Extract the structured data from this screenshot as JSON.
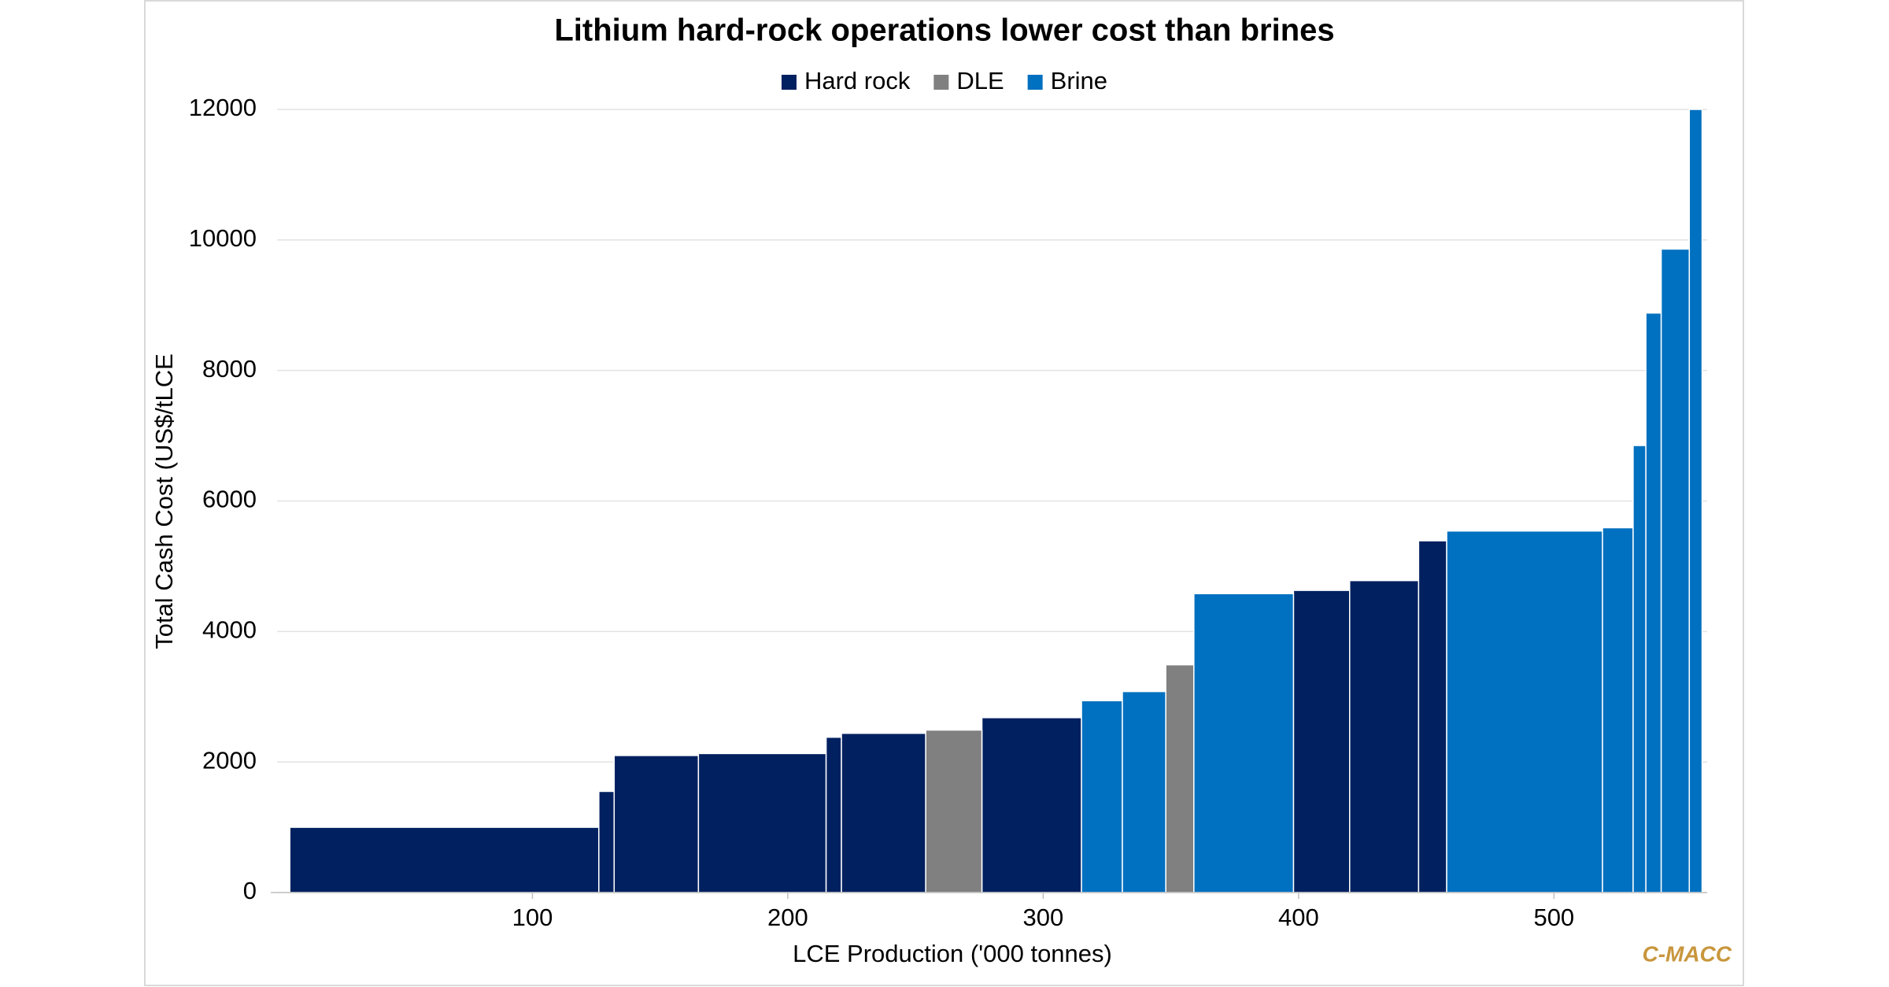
{
  "chart_data": {
    "type": "cost-curve",
    "title": "Lithium hard-rock operations lower cost than brines",
    "x_label": "LCE Production ('000 tonnes)",
    "y_label": "Total Cash Cost (US$/tLCE",
    "source": "C-MACC",
    "xlim": [
      0,
      560
    ],
    "xticks": [
      100,
      200,
      300,
      400,
      500
    ],
    "ylim": [
      0,
      12000
    ],
    "yticks": [
      0,
      2000,
      4000,
      6000,
      8000,
      10000,
      12000
    ],
    "grid": true,
    "legend": "top",
    "series": [
      {
        "name": "Hard rock",
        "color": "#002060",
        "x0": [
          5,
          126,
          132,
          165,
          215,
          221,
          276,
          398,
          420,
          447
        ],
        "x1": [
          126,
          132,
          165,
          215,
          221,
          254,
          315,
          420,
          447,
          458
        ],
        "values": [
          1000,
          1550,
          2100,
          2130,
          2380,
          2440,
          2680,
          4630,
          4780,
          5390
        ]
      },
      {
        "name": "DLE",
        "color": "#808080",
        "x0": [
          254,
          348
        ],
        "x1": [
          276,
          359
        ],
        "values": [
          2490,
          3490
        ]
      },
      {
        "name": "Brine",
        "color": "#0070c0",
        "x0": [
          315,
          331,
          359,
          458,
          519,
          531,
          536,
          542,
          553
        ],
        "x1": [
          331,
          348,
          398,
          519,
          531,
          536,
          542,
          553,
          558
        ],
        "values": [
          2940,
          3080,
          4580,
          5540,
          5590,
          6850,
          8880,
          9860,
          12000
        ]
      }
    ]
  }
}
